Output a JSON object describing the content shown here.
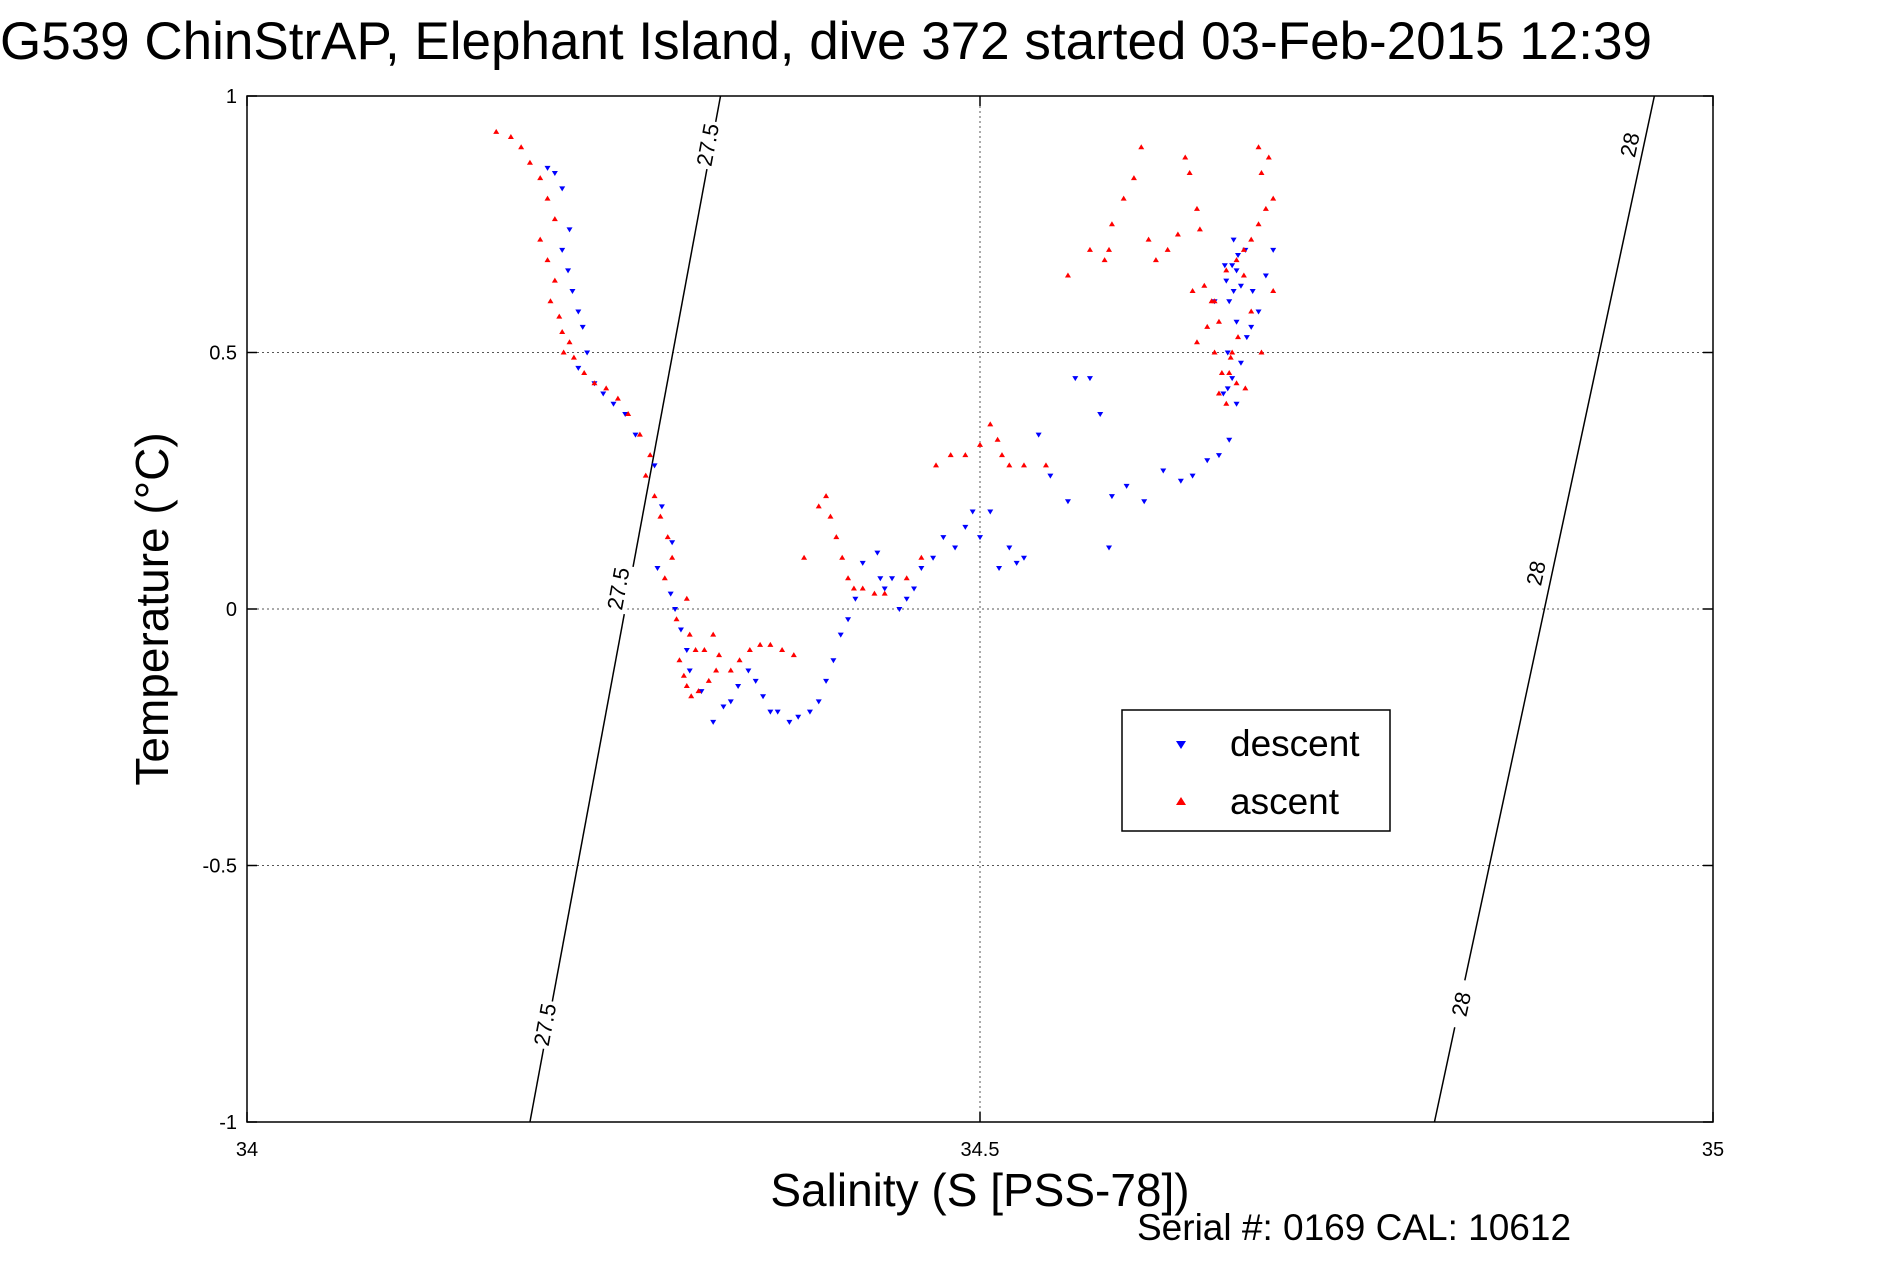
{
  "title": "G539 ChinStrAP, Elephant Island, dive 372 started 03-Feb-2015 12:39",
  "footer": "Serial #: 0169 CAL: 10612",
  "colors": {
    "descent": "#0000ff",
    "ascent": "#ff0000",
    "grid": "#555555",
    "isopycnal": "#000000"
  },
  "chart_data": {
    "type": "scatter",
    "xlabel": "Salinity (S [PSS-78])",
    "ylabel": "Temperature (°C)",
    "xlim": [
      34,
      35
    ],
    "ylim": [
      -1,
      1
    ],
    "xticks": [
      34,
      34.5,
      35
    ],
    "xtick_labels": [
      "34",
      "34.5",
      "35"
    ],
    "yticks": [
      -1,
      -0.5,
      0,
      0.5,
      1
    ],
    "ytick_labels": [
      "-1",
      "-0.5",
      "0",
      "0.5",
      "1"
    ],
    "grid": true,
    "legend_position": "right-center",
    "isopycnals": [
      {
        "label": "27.5",
        "from": [
          34.193,
          -1.0
        ],
        "to": [
          34.323,
          1.0
        ],
        "label_points": [
          [
            34.314,
            0.905
          ],
          [
            34.253,
            0.04
          ],
          [
            34.203,
            -0.81
          ]
        ]
      },
      {
        "label": "28",
        "from": [
          34.81,
          -1.0
        ],
        "to": [
          34.96,
          1.0
        ],
        "label_points": [
          [
            34.943,
            0.905
          ],
          [
            34.879,
            0.07
          ],
          [
            34.828,
            -0.77
          ]
        ]
      }
    ],
    "series": [
      {
        "name": "descent",
        "marker": "triangle-down",
        "x": [
          34.205,
          34.21,
          34.215,
          34.22,
          34.215,
          34.219,
          34.222,
          34.226,
          34.229,
          34.232,
          34.226,
          34.237,
          34.243,
          34.25,
          34.258,
          34.265,
          34.278,
          34.283,
          34.29,
          34.28,
          34.289,
          34.292,
          34.296,
          34.3,
          34.302,
          34.31,
          34.318,
          34.325,
          34.33,
          34.335,
          34.342,
          34.347,
          34.352,
          34.357,
          34.362,
          34.37,
          34.376,
          34.384,
          34.39,
          34.395,
          34.4,
          34.405,
          34.41,
          34.415,
          34.42,
          34.43,
          34.432,
          34.435,
          34.44,
          34.445,
          34.45,
          34.455,
          34.46,
          34.468,
          34.475,
          34.483,
          34.49,
          34.495,
          34.5,
          34.507,
          34.513,
          34.52,
          34.525,
          34.53,
          34.54,
          34.548,
          34.56,
          34.565,
          34.575,
          34.582,
          34.588,
          34.59,
          34.6,
          34.612,
          34.625,
          34.637,
          34.645,
          34.655,
          34.663,
          34.67,
          34.675,
          34.678,
          34.682,
          34.69,
          34.695,
          34.7,
          34.673,
          34.675,
          34.668,
          34.66,
          34.672,
          34.666,
          34.669,
          34.685,
          34.678,
          34.67,
          34.676,
          34.681,
          34.673,
          34.667,
          34.675,
          34.686,
          34.669,
          34.672
        ],
        "y": [
          0.86,
          0.85,
          0.82,
          0.74,
          0.7,
          0.66,
          0.62,
          0.58,
          0.55,
          0.5,
          0.47,
          0.44,
          0.42,
          0.4,
          0.38,
          0.34,
          0.28,
          0.2,
          0.13,
          0.08,
          0.03,
          0.0,
          -0.04,
          -0.08,
          -0.12,
          -0.16,
          -0.22,
          -0.19,
          -0.18,
          -0.15,
          -0.12,
          -0.14,
          -0.17,
          -0.2,
          -0.2,
          -0.22,
          -0.21,
          -0.2,
          -0.18,
          -0.14,
          -0.1,
          -0.05,
          -0.02,
          0.02,
          0.09,
          0.11,
          0.06,
          0.04,
          0.06,
          0.0,
          0.02,
          0.04,
          0.08,
          0.1,
          0.14,
          0.12,
          0.16,
          0.19,
          0.14,
          0.19,
          0.08,
          0.12,
          0.09,
          0.1,
          0.34,
          0.26,
          0.21,
          0.45,
          0.45,
          0.38,
          0.12,
          0.22,
          0.24,
          0.21,
          0.27,
          0.25,
          0.26,
          0.29,
          0.3,
          0.33,
          0.4,
          0.48,
          0.53,
          0.58,
          0.65,
          0.7,
          0.72,
          0.66,
          0.64,
          0.6,
          0.45,
          0.42,
          0.5,
          0.55,
          0.63,
          0.6,
          0.69,
          0.7,
          0.62,
          0.67,
          0.56,
          0.62,
          0.43,
          0.67
        ]
      },
      {
        "name": "ascent",
        "marker": "triangle-up",
        "x": [
          34.17,
          34.18,
          34.187,
          34.193,
          34.2,
          34.205,
          34.21,
          34.2,
          34.205,
          34.21,
          34.207,
          34.213,
          34.215,
          34.22,
          34.216,
          34.223,
          34.23,
          34.237,
          34.245,
          34.253,
          34.26,
          34.268,
          34.275,
          34.272,
          34.278,
          34.282,
          34.287,
          34.29,
          34.285,
          34.3,
          34.293,
          34.302,
          34.306,
          34.295,
          34.298,
          34.3,
          34.303,
          34.308,
          34.315,
          34.32,
          34.312,
          34.318,
          34.322,
          34.33,
          34.336,
          34.343,
          34.35,
          34.357,
          34.365,
          34.373,
          34.38,
          34.39,
          34.395,
          34.398,
          34.402,
          34.406,
          34.41,
          34.414,
          34.42,
          34.428,
          34.435,
          34.45,
          34.46,
          34.47,
          34.48,
          34.49,
          34.5,
          34.507,
          34.512,
          34.515,
          34.52,
          34.53,
          34.545,
          34.56,
          34.575,
          34.585,
          34.588,
          34.59,
          34.598,
          34.605,
          34.61,
          34.615,
          34.62,
          34.628,
          34.635,
          34.64,
          34.643,
          34.648,
          34.65,
          34.645,
          34.655,
          34.648,
          34.66,
          34.665,
          34.668,
          34.672,
          34.663,
          34.658,
          34.653,
          34.66,
          34.668,
          34.675,
          34.68,
          34.685,
          34.69,
          34.695,
          34.7,
          34.692,
          34.697,
          34.69,
          34.7,
          34.68,
          34.685,
          34.671,
          34.676,
          34.692,
          34.67,
          34.681,
          34.663,
          34.675
        ],
        "y": [
          0.93,
          0.92,
          0.9,
          0.87,
          0.84,
          0.8,
          0.76,
          0.72,
          0.68,
          0.64,
          0.6,
          0.57,
          0.54,
          0.52,
          0.5,
          0.49,
          0.46,
          0.44,
          0.43,
          0.41,
          0.38,
          0.34,
          0.3,
          0.26,
          0.22,
          0.18,
          0.14,
          0.1,
          0.06,
          0.02,
          -0.02,
          -0.05,
          -0.08,
          -0.1,
          -0.13,
          -0.15,
          -0.17,
          -0.16,
          -0.14,
          -0.12,
          -0.08,
          -0.05,
          -0.09,
          -0.12,
          -0.1,
          -0.08,
          -0.07,
          -0.07,
          -0.08,
          -0.09,
          0.1,
          0.2,
          0.22,
          0.18,
          0.14,
          0.1,
          0.06,
          0.04,
          0.04,
          0.03,
          0.03,
          0.06,
          0.1,
          0.28,
          0.3,
          0.3,
          0.32,
          0.36,
          0.33,
          0.3,
          0.28,
          0.28,
          0.28,
          0.65,
          0.7,
          0.68,
          0.7,
          0.75,
          0.8,
          0.84,
          0.9,
          0.72,
          0.68,
          0.7,
          0.73,
          0.88,
          0.85,
          0.78,
          0.74,
          0.62,
          0.55,
          0.52,
          0.5,
          0.46,
          0.4,
          0.5,
          0.56,
          0.6,
          0.63,
          0.6,
          0.66,
          0.68,
          0.7,
          0.72,
          0.75,
          0.78,
          0.8,
          0.85,
          0.88,
          0.9,
          0.62,
          0.65,
          0.58,
          0.49,
          0.53,
          0.5,
          0.46,
          0.43,
          0.42,
          0.44
        ]
      }
    ]
  }
}
